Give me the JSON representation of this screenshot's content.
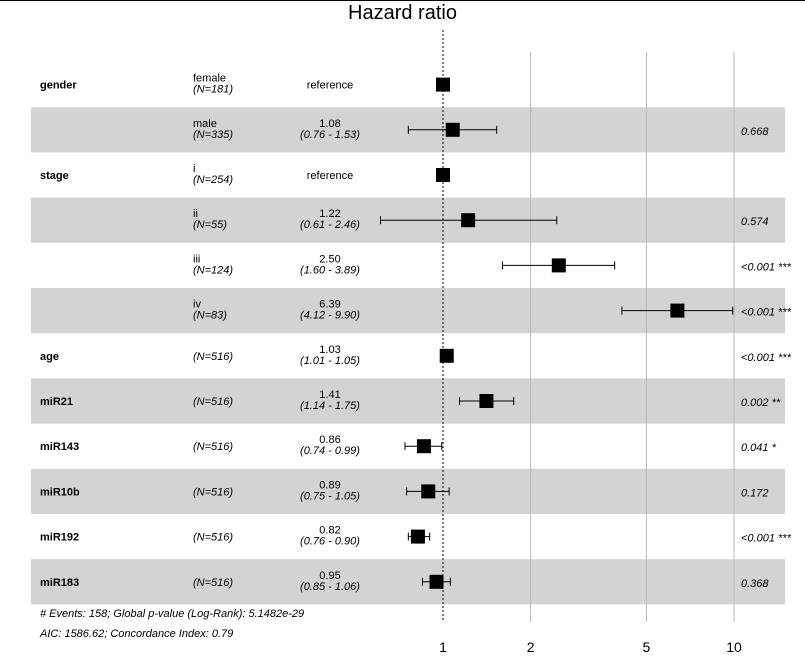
{
  "chart_data": {
    "type": "forest",
    "title": "Hazard ratio",
    "xscale": "log",
    "xlim": [
      0.6,
      11
    ],
    "x_ticks": [
      1,
      2,
      5,
      10
    ],
    "x_tick_labels": [
      "1",
      "2",
      "5",
      "10"
    ],
    "reference_line": 1,
    "rows": [
      {
        "variable": "gender",
        "level": "female",
        "n": "(N=181)",
        "hr": 1.0,
        "lo": null,
        "hi": null,
        "hr_label": "reference",
        "ci_label": "",
        "p": "",
        "shaded": false
      },
      {
        "variable": "",
        "level": "male",
        "n": "(N=335)",
        "hr": 1.08,
        "lo": 0.76,
        "hi": 1.53,
        "hr_label": "1.08",
        "ci_label": "(0.76 - 1.53)",
        "p": "0.668",
        "shaded": true
      },
      {
        "variable": "stage",
        "level": "i",
        "n": "(N=254)",
        "hr": 1.0,
        "lo": null,
        "hi": null,
        "hr_label": "reference",
        "ci_label": "",
        "p": "",
        "shaded": false
      },
      {
        "variable": "",
        "level": "ii",
        "n": "(N=55)",
        "hr": 1.22,
        "lo": 0.61,
        "hi": 2.46,
        "hr_label": "1.22",
        "ci_label": "(0.61 - 2.46)",
        "p": "0.574",
        "shaded": true
      },
      {
        "variable": "",
        "level": "iii",
        "n": "(N=124)",
        "hr": 2.5,
        "lo": 1.6,
        "hi": 3.89,
        "hr_label": "2.50",
        "ci_label": "(1.60 - 3.89)",
        "p": "<0.001 ***",
        "shaded": false
      },
      {
        "variable": "",
        "level": "iv",
        "n": "(N=83)",
        "hr": 6.39,
        "lo": 4.12,
        "hi": 9.9,
        "hr_label": "6.39",
        "ci_label": "(4.12 - 9.90)",
        "p": "<0.001 ***",
        "shaded": true
      },
      {
        "variable": "age",
        "level": "",
        "n": "(N=516)",
        "hr": 1.03,
        "lo": 1.01,
        "hi": 1.05,
        "hr_label": "1.03",
        "ci_label": "(1.01 - 1.05)",
        "p": "<0.001 ***",
        "shaded": false
      },
      {
        "variable": "miR21",
        "level": "",
        "n": "(N=516)",
        "hr": 1.41,
        "lo": 1.14,
        "hi": 1.75,
        "hr_label": "1.41",
        "ci_label": "(1.14 - 1.75)",
        "p": "0.002 **",
        "shaded": true
      },
      {
        "variable": "miR143",
        "level": "",
        "n": "(N=516)",
        "hr": 0.86,
        "lo": 0.74,
        "hi": 0.99,
        "hr_label": "0.86",
        "ci_label": "(0.74 - 0.99)",
        "p": "0.041 *",
        "shaded": false
      },
      {
        "variable": "miR10b",
        "level": "",
        "n": "(N=516)",
        "hr": 0.89,
        "lo": 0.75,
        "hi": 1.05,
        "hr_label": "0.89",
        "ci_label": "(0.75 - 1.05)",
        "p": "0.172",
        "shaded": true
      },
      {
        "variable": "miR192",
        "level": "",
        "n": "(N=516)",
        "hr": 0.82,
        "lo": 0.76,
        "hi": 0.9,
        "hr_label": "0.82",
        "ci_label": "(0.76 - 0.90)",
        "p": "<0.001 ***",
        "shaded": false
      },
      {
        "variable": "miR183",
        "level": "",
        "n": "(N=516)",
        "hr": 0.95,
        "lo": 0.85,
        "hi": 1.06,
        "hr_label": "0.95",
        "ci_label": "(0.85 - 1.06)",
        "p": "0.368",
        "shaded": true
      }
    ],
    "footnotes": [
      "# Events: 158; Global p-value (Log-Rank): 5.1482e-29",
      "AIC: 1586.62; Concordance Index: 0.79"
    ],
    "colors": {
      "shade": "#d3d3d3",
      "gridline": "#b8b8b8",
      "marker": "#000000"
    }
  }
}
